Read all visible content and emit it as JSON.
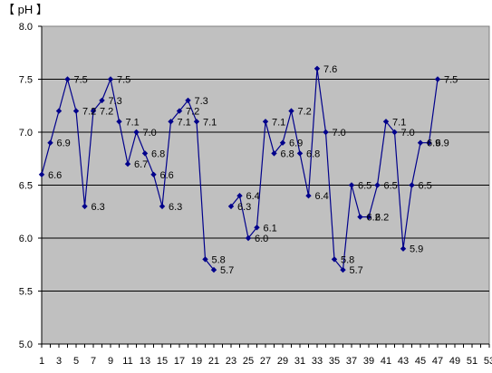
{
  "chart_data": {
    "type": "line",
    "unit_label": "【 pH 】",
    "title": "",
    "xlabel": "",
    "ylabel": "",
    "ylim": [
      5.0,
      8.0
    ],
    "yticks": [
      "5.0",
      "5.5",
      "6.0",
      "6.5",
      "7.0",
      "7.5",
      "8.0"
    ],
    "xlim": [
      1,
      53
    ],
    "xticks": [
      1,
      3,
      5,
      7,
      9,
      11,
      13,
      15,
      17,
      19,
      21,
      23,
      25,
      27,
      29,
      31,
      33,
      35,
      37,
      39,
      41,
      43,
      45,
      47,
      49,
      51,
      53
    ],
    "grid": "horizontal",
    "plot_background": "#c0c0c0",
    "line_color": "#00008b",
    "series": [
      {
        "points": [
          {
            "x": 1,
            "y": 6.6
          },
          {
            "x": 2,
            "y": 6.9
          },
          {
            "x": 3,
            "y": 7.2
          },
          {
            "x": 4,
            "y": 7.5
          },
          {
            "x": 5,
            "y": 7.2
          },
          {
            "x": 6,
            "y": 6.3
          },
          {
            "x": 7,
            "y": 7.2
          },
          {
            "x": 8,
            "y": 7.3
          },
          {
            "x": 9,
            "y": 7.5
          },
          {
            "x": 10,
            "y": 7.1
          },
          {
            "x": 11,
            "y": 6.7
          },
          {
            "x": 12,
            "y": 7.0
          },
          {
            "x": 13,
            "y": 6.8
          },
          {
            "x": 14,
            "y": 6.6
          },
          {
            "x": 15,
            "y": 6.3
          },
          {
            "x": 16,
            "y": 7.1
          },
          {
            "x": 17,
            "y": 7.2
          },
          {
            "x": 18,
            "y": 7.3
          },
          {
            "x": 19,
            "y": 7.1
          },
          {
            "x": 20,
            "y": 5.8
          },
          {
            "x": 21,
            "y": 5.7
          },
          {
            "x": 22,
            "y": null
          },
          {
            "x": 23,
            "y": 6.3
          },
          {
            "x": 24,
            "y": 6.4
          },
          {
            "x": 25,
            "y": 6.0
          },
          {
            "x": 26,
            "y": 6.1
          },
          {
            "x": 27,
            "y": 7.1
          },
          {
            "x": 28,
            "y": 6.8
          },
          {
            "x": 29,
            "y": 6.9
          },
          {
            "x": 30,
            "y": 7.2
          },
          {
            "x": 31,
            "y": 6.8
          },
          {
            "x": 32,
            "y": 6.4
          },
          {
            "x": 33,
            "y": 7.6
          },
          {
            "x": 34,
            "y": 7.0
          },
          {
            "x": 35,
            "y": 5.8
          },
          {
            "x": 36,
            "y": 5.7
          },
          {
            "x": 37,
            "y": 6.5
          },
          {
            "x": 38,
            "y": 6.2
          },
          {
            "x": 39,
            "y": 6.2
          },
          {
            "x": 40,
            "y": 6.5
          },
          {
            "x": 41,
            "y": 7.1
          },
          {
            "x": 42,
            "y": 7.0
          },
          {
            "x": 43,
            "y": 5.9
          },
          {
            "x": 44,
            "y": 6.5
          },
          {
            "x": 45,
            "y": 6.9
          },
          {
            "x": 46,
            "y": 6.9
          },
          {
            "x": 47,
            "y": 7.5
          }
        ],
        "labels": [
          {
            "x": 1,
            "text": "6.6"
          },
          {
            "x": 2,
            "text": "6.9"
          },
          {
            "x": 4,
            "text": "7.5"
          },
          {
            "x": 5,
            "text": "7.2"
          },
          {
            "x": 6,
            "text": "6.3"
          },
          {
            "x": 7,
            "text": "7.2"
          },
          {
            "x": 8,
            "text": "7.3"
          },
          {
            "x": 9,
            "text": "7.5"
          },
          {
            "x": 10,
            "text": "7.1"
          },
          {
            "x": 11,
            "text": "6.7"
          },
          {
            "x": 12,
            "text": "7.0"
          },
          {
            "x": 13,
            "text": "6.8"
          },
          {
            "x": 14,
            "text": "6.6"
          },
          {
            "x": 15,
            "text": "6.3"
          },
          {
            "x": 16,
            "text": "7.1"
          },
          {
            "x": 17,
            "text": "7.2"
          },
          {
            "x": 18,
            "text": "7.3"
          },
          {
            "x": 19,
            "text": "7.1"
          },
          {
            "x": 20,
            "text": "5.8"
          },
          {
            "x": 21,
            "text": "5.7"
          },
          {
            "x": 23,
            "text": "6.3"
          },
          {
            "x": 24,
            "text": "6.4"
          },
          {
            "x": 25,
            "text": "6.0"
          },
          {
            "x": 26,
            "text": "6.1"
          },
          {
            "x": 27,
            "text": "7.1"
          },
          {
            "x": 28,
            "text": "6.8"
          },
          {
            "x": 29,
            "text": "6.9"
          },
          {
            "x": 30,
            "text": "7.2"
          },
          {
            "x": 31,
            "text": "6.8"
          },
          {
            "x": 32,
            "text": "6.4"
          },
          {
            "x": 33,
            "text": "7.6"
          },
          {
            "x": 34,
            "text": "7.0"
          },
          {
            "x": 35,
            "text": "5.8"
          },
          {
            "x": 36,
            "text": "5.7"
          },
          {
            "x": 37,
            "text": "6.5"
          },
          {
            "x": 38,
            "text": "6.2"
          },
          {
            "x": 39,
            "text": "6.2"
          },
          {
            "x": 40,
            "text": "6.5"
          },
          {
            "x": 41,
            "text": "7.1"
          },
          {
            "x": 42,
            "text": "7.0"
          },
          {
            "x": 43,
            "text": "5.9"
          },
          {
            "x": 44,
            "text": "6.5"
          },
          {
            "x": 45,
            "text": "6.9"
          },
          {
            "x": 46,
            "text": "6.9"
          },
          {
            "x": 47,
            "text": "7.5"
          }
        ]
      }
    ]
  }
}
